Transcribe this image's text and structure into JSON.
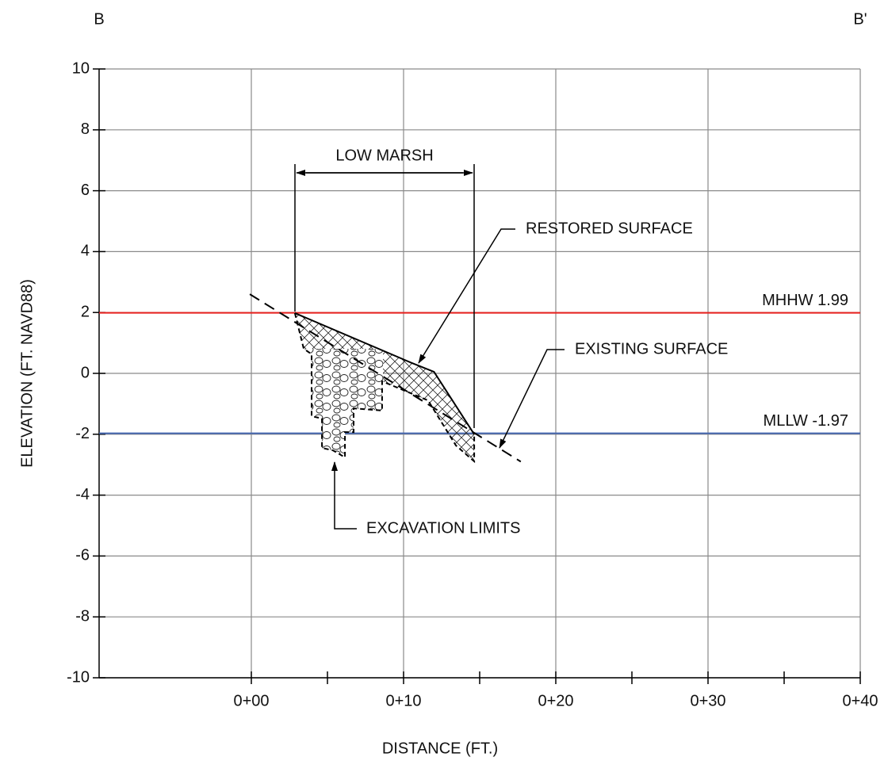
{
  "chart_data": {
    "type": "section",
    "corner_labels": [
      "B",
      "B'"
    ],
    "xlabel": "DISTANCE (FT.)",
    "ylabel": "ELEVATION (FT. NAVD88)",
    "xlim": [
      -10,
      40
    ],
    "ylim": [
      -10,
      10
    ],
    "xticks": [
      {
        "value": 0,
        "label": "0+00"
      },
      {
        "value": 10,
        "label": "0+10"
      },
      {
        "value": 20,
        "label": "0+20"
      },
      {
        "value": 30,
        "label": "0+30"
      },
      {
        "value": 40,
        "label": "0+40"
      }
    ],
    "xminor": [
      5,
      15,
      25,
      35
    ],
    "yticks": [
      -10,
      -8,
      -6,
      -4,
      -2,
      0,
      2,
      4,
      6,
      8,
      10
    ],
    "grid": true,
    "reference_lines": [
      {
        "name": "MHHW 1.99",
        "value": 1.99,
        "color": "#e8211e"
      },
      {
        "name": "MLLW -1.97",
        "value": -1.97,
        "color": "#4466b0"
      }
    ],
    "series": [
      {
        "name": "EXISTING SURFACE",
        "color": "#000000",
        "x": [
          -0.1,
          17.7
        ],
        "values": [
          2.6,
          -2.9
        ]
      },
      {
        "name": "RESTORED SURFACE",
        "color": "#000000",
        "x": [
          2.86,
          10.5,
          12.0,
          14.64
        ],
        "values": [
          1.98,
          0.35,
          0.05,
          -2.0
        ]
      },
      {
        "name": "EXCAVATION LIMITS",
        "color": "#000000",
        "x": [
          2.86,
          3.44,
          3.96,
          3.96,
          4.64,
          4.64,
          5.36,
          6.15,
          6.15,
          6.72,
          6.72,
          8.59,
          8.59,
          11.61,
          13.44,
          14.64,
          14.64
        ],
        "values": [
          1.98,
          0.81,
          0.63,
          -1.41,
          -1.48,
          -2.45,
          -2.53,
          -2.76,
          -1.93,
          -1.93,
          -1.15,
          -1.22,
          -0.26,
          -0.89,
          -2.37,
          -2.89,
          -2.0
        ]
      }
    ],
    "annotations": [
      "LOW MARSH"
    ]
  }
}
